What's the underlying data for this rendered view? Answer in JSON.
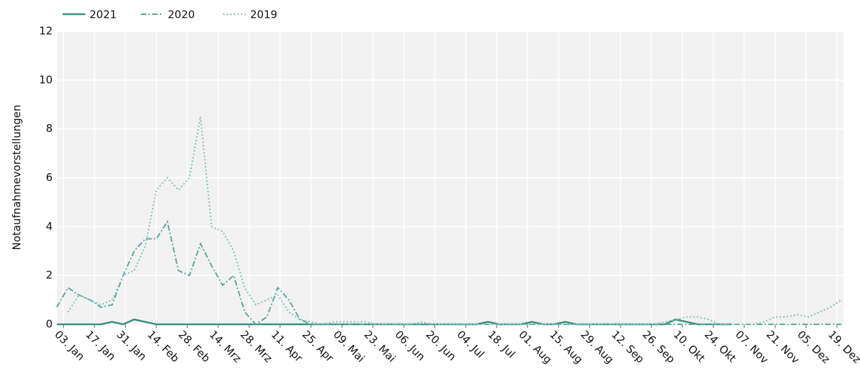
{
  "chart_data": {
    "type": "line",
    "y_label": "Notaufnahmevorstellungen",
    "x": [
      0,
      5,
      10,
      15,
      20,
      25,
      30,
      35,
      40,
      45,
      50,
      55,
      60,
      65,
      70,
      75,
      80,
      85,
      90,
      95,
      100,
      105,
      110,
      115,
      120,
      125,
      130,
      135,
      140,
      145,
      150,
      155,
      160,
      165,
      170,
      175,
      180,
      185,
      190,
      195,
      200,
      205,
      210,
      215,
      220,
      225,
      230,
      235,
      240,
      245,
      250,
      255,
      260,
      265,
      270,
      275,
      280,
      285,
      290,
      295,
      300,
      305,
      310,
      315,
      320,
      325,
      330,
      335,
      340,
      345,
      350,
      355
    ],
    "xlim": [
      0,
      356
    ],
    "xticks": [
      {
        "value": 3,
        "label": "03. Jan"
      },
      {
        "value": 17,
        "label": "17. Jan"
      },
      {
        "value": 31,
        "label": "31. Jan"
      },
      {
        "value": 45,
        "label": "14. Feb"
      },
      {
        "value": 59,
        "label": "28. Feb"
      },
      {
        "value": 73,
        "label": "14. Mrz"
      },
      {
        "value": 87,
        "label": "28. Mrz"
      },
      {
        "value": 101,
        "label": "11. Apr"
      },
      {
        "value": 115,
        "label": "25. Apr"
      },
      {
        "value": 129,
        "label": "09. Mai"
      },
      {
        "value": 143,
        "label": "23. Mai"
      },
      {
        "value": 157,
        "label": "06. Jun"
      },
      {
        "value": 171,
        "label": "20. Jun"
      },
      {
        "value": 185,
        "label": "04. Jul"
      },
      {
        "value": 199,
        "label": "18. Jul"
      },
      {
        "value": 213,
        "label": "01. Aug"
      },
      {
        "value": 227,
        "label": "15. Aug"
      },
      {
        "value": 241,
        "label": "29. Aug"
      },
      {
        "value": 255,
        "label": "12. Sep"
      },
      {
        "value": 269,
        "label": "26. Sep"
      },
      {
        "value": 283,
        "label": "10. Okt"
      },
      {
        "value": 297,
        "label": "24. Okt"
      },
      {
        "value": 311,
        "label": "07. Nov"
      },
      {
        "value": 325,
        "label": "21. Nov"
      },
      {
        "value": 339,
        "label": "05. Dez"
      },
      {
        "value": 353,
        "label": "19. Dez"
      }
    ],
    "ylim": [
      0,
      12
    ],
    "yticks": [
      0,
      2,
      4,
      6,
      8,
      10,
      12
    ],
    "grid": true,
    "series": [
      {
        "name": "2021",
        "color": "#3d8f80",
        "style": "solid",
        "values": [
          0,
          0,
          0,
          0,
          0,
          0.1,
          0,
          0.2,
          0.1,
          0,
          0,
          0,
          0,
          0,
          0,
          0,
          0,
          0,
          0,
          0,
          0,
          0,
          0,
          0,
          0,
          0,
          0,
          0,
          0,
          0,
          0,
          0,
          0,
          0,
          0,
          0,
          0,
          0,
          0,
          0.1,
          0,
          0,
          0,
          0.1,
          0,
          0,
          0.1,
          0,
          0,
          0,
          0,
          0,
          0,
          0,
          0,
          0,
          0.2,
          0.1,
          0,
          0,
          0,
          0,
          null,
          null,
          null,
          null,
          null,
          null,
          null,
          null,
          null,
          null
        ]
      },
      {
        "name": "2020",
        "color": "#5daa9b",
        "style": "dashdot",
        "values": [
          0.7,
          1.5,
          1.2,
          1.0,
          0.7,
          0.8,
          2.0,
          3.0,
          3.5,
          3.5,
          4.2,
          2.2,
          2.0,
          3.3,
          2.4,
          1.6,
          2.0,
          0.5,
          0,
          0.3,
          1.5,
          1.0,
          0.2,
          0,
          0,
          0,
          0,
          0,
          0,
          0,
          0,
          0,
          0,
          0,
          0,
          0,
          0,
          0,
          0,
          0,
          0,
          0,
          0,
          0,
          0,
          0,
          0,
          0,
          0,
          0,
          0,
          0,
          0,
          0,
          0,
          0,
          0,
          0,
          0,
          0,
          0,
          0,
          0,
          0,
          0,
          0,
          0,
          0,
          0,
          0,
          0,
          0
        ]
      },
      {
        "name": "2019",
        "color": "#7fc4b5",
        "style": "dot",
        "values": [
          null,
          0.5,
          1.2,
          1.0,
          0.8,
          1.0,
          2.0,
          2.2,
          3.2,
          5.5,
          6.0,
          5.5,
          6.0,
          8.5,
          4.0,
          3.8,
          3.0,
          1.5,
          0.8,
          1.0,
          1.2,
          0.5,
          0.2,
          0.1,
          0,
          0.1,
          0.1,
          0.1,
          0.1,
          0,
          0,
          0,
          0,
          0.1,
          0,
          0,
          0,
          0,
          0,
          0,
          0,
          0,
          0,
          0,
          0,
          0,
          0,
          0,
          0,
          0,
          0,
          0,
          0,
          0,
          0,
          0.1,
          0.2,
          0.3,
          0.3,
          0.2,
          0,
          0,
          0,
          0,
          0.1,
          0.3,
          0.3,
          0.4,
          0.3,
          0.5,
          0.7,
          1.0
        ]
      }
    ]
  }
}
